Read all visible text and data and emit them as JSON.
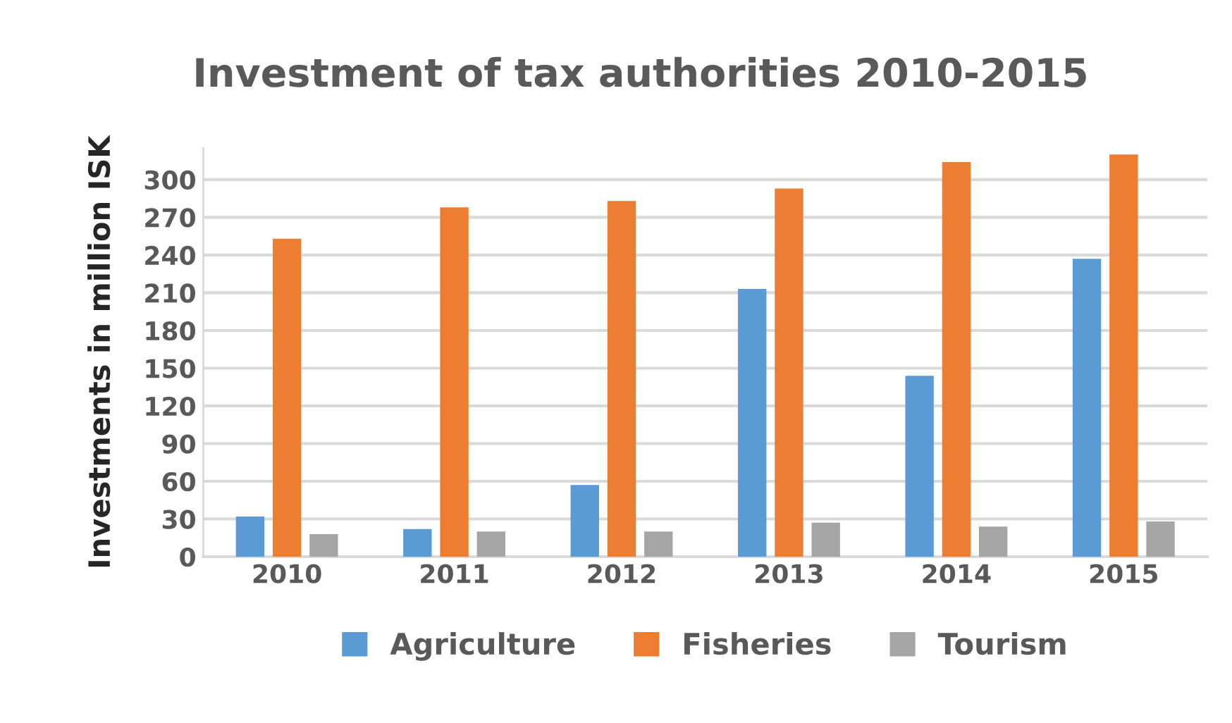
{
  "chart_data": {
    "type": "bar",
    "title": "Investment of tax authorities 2010-2015",
    "ylabel": "Investments in million ISK",
    "categories": [
      "2010",
      "2011",
      "2012",
      "2013",
      "2014",
      "2015"
    ],
    "series": [
      {
        "name": "Agriculture",
        "color": "#5b9bd5",
        "values": [
          32,
          22,
          57,
          213,
          144,
          237
        ]
      },
      {
        "name": "Fisheries",
        "color": "#ed7d31",
        "values": [
          253,
          278,
          283,
          293,
          314,
          320
        ]
      },
      {
        "name": "Tourism",
        "color": "#a5a5a5",
        "values": [
          18,
          20,
          20,
          27,
          24,
          28
        ]
      }
    ],
    "ylim": [
      0,
      325
    ],
    "yticks": [
      0,
      30,
      60,
      90,
      120,
      150,
      180,
      210,
      240,
      270,
      300
    ],
    "grid": "y",
    "legend": "bottom"
  }
}
